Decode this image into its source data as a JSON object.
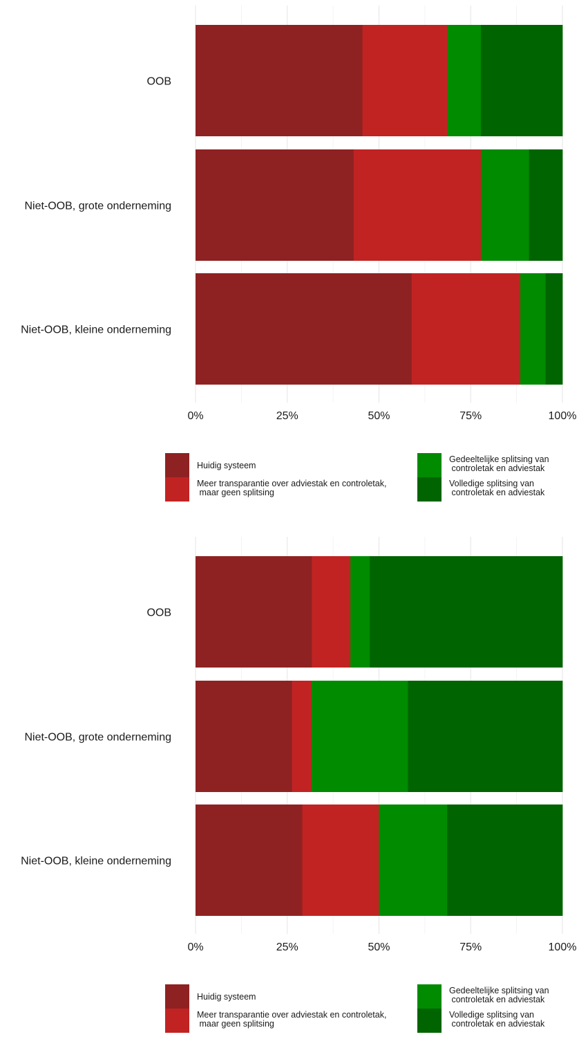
{
  "chart_data": [
    {
      "type": "bar",
      "orientation": "horizontal",
      "stacked": true,
      "percent": true,
      "categories": [
        "OOB",
        "Niet-OOB, grote onderneming",
        "Niet-OOB, kleine onderneming"
      ],
      "series": [
        {
          "name": "Huidig systeem",
          "color": "#8e2222",
          "values": [
            45.5,
            43.1,
            58.9
          ]
        },
        {
          "name": "Meer transparantie over adviestak en controletak,\n maar geen splitsing",
          "color": "#c12323",
          "values": [
            23.1,
            34.7,
            29.6
          ]
        },
        {
          "name": "Gedeeltelijke splitsing van\n controletak en adviestak",
          "color": "#008b00",
          "values": [
            9.2,
            13.1,
            6.9
          ]
        },
        {
          "name": "Volledige splitsing van\n controletak en adviestak",
          "color": "#006400",
          "values": [
            22.2,
            9.1,
            4.6
          ]
        }
      ],
      "xlim": [
        0,
        100
      ],
      "xticks": [
        "0%",
        "25%",
        "50%",
        "75%",
        "100%"
      ],
      "grid": true,
      "legend": "bottom"
    },
    {
      "type": "bar",
      "orientation": "horizontal",
      "stacked": true,
      "percent": true,
      "categories": [
        "OOB",
        "Niet-OOB, grote onderneming",
        "Niet-OOB, kleine onderneming"
      ],
      "series": [
        {
          "name": "Huidig systeem",
          "color": "#8e2222",
          "values": [
            31.7,
            26.3,
            29.1
          ]
        },
        {
          "name": "Meer transparantie over adviestak en controletak,\n maar geen splitsing",
          "color": "#c12323",
          "values": [
            10.5,
            5.3,
            20.9
          ]
        },
        {
          "name": "Gedeeltelijke splitsing van\n controletak en adviestak",
          "color": "#008b00",
          "values": [
            5.3,
            26.3,
            18.6
          ]
        },
        {
          "name": "Volledige splitsing van\n controletak en adviestak",
          "color": "#006400",
          "values": [
            52.5,
            42.1,
            31.4
          ]
        }
      ],
      "xlim": [
        0,
        100
      ],
      "xticks": [
        "0%",
        "25%",
        "50%",
        "75%",
        "100%"
      ],
      "grid": true,
      "legend": "bottom"
    }
  ]
}
